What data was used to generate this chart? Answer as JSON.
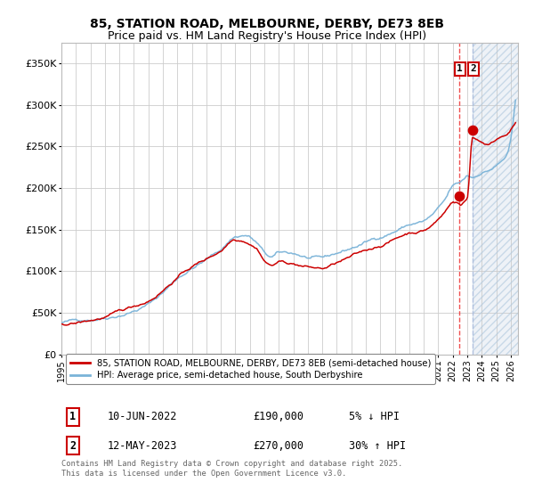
{
  "title": "85, STATION ROAD, MELBOURNE, DERBY, DE73 8EB",
  "subtitle": "Price paid vs. HM Land Registry's House Price Index (HPI)",
  "title_fontsize": 10,
  "subtitle_fontsize": 9,
  "ylabel_ticks": [
    "£0",
    "£50K",
    "£100K",
    "£150K",
    "£200K",
    "£250K",
    "£300K",
    "£350K"
  ],
  "ytick_vals": [
    0,
    50000,
    100000,
    150000,
    200000,
    250000,
    300000,
    350000
  ],
  "ylim": [
    0,
    375000
  ],
  "xlim_start": 1995.0,
  "xlim_end": 2026.5,
  "hpi_color": "#7ab3d8",
  "price_color": "#cc0000",
  "marker_color": "#cc0000",
  "point1_x": 2022.44,
  "point1_price": 190000,
  "point2_x": 2023.36,
  "point2_price": 270000,
  "vline1_color": "#ee3333",
  "vline2_color": "#aabbdd",
  "legend1": "85, STATION ROAD, MELBOURNE, DERBY, DE73 8EB (semi-detached house)",
  "legend2": "HPI: Average price, semi-detached house, South Derbyshire",
  "table_row1_num": "1",
  "table_row1_date": "10-JUN-2022",
  "table_row1_price": "£190,000",
  "table_row1_hpi": "5% ↓ HPI",
  "table_row2_num": "2",
  "table_row2_date": "12-MAY-2023",
  "table_row2_price": "£270,000",
  "table_row2_hpi": "30% ↑ HPI",
  "footer": "Contains HM Land Registry data © Crown copyright and database right 2025.\nThis data is licensed under the Open Government Licence v3.0.",
  "bg_color": "#ffffff",
  "grid_color": "#cccccc",
  "hatch_region_color": "#dde8f0"
}
